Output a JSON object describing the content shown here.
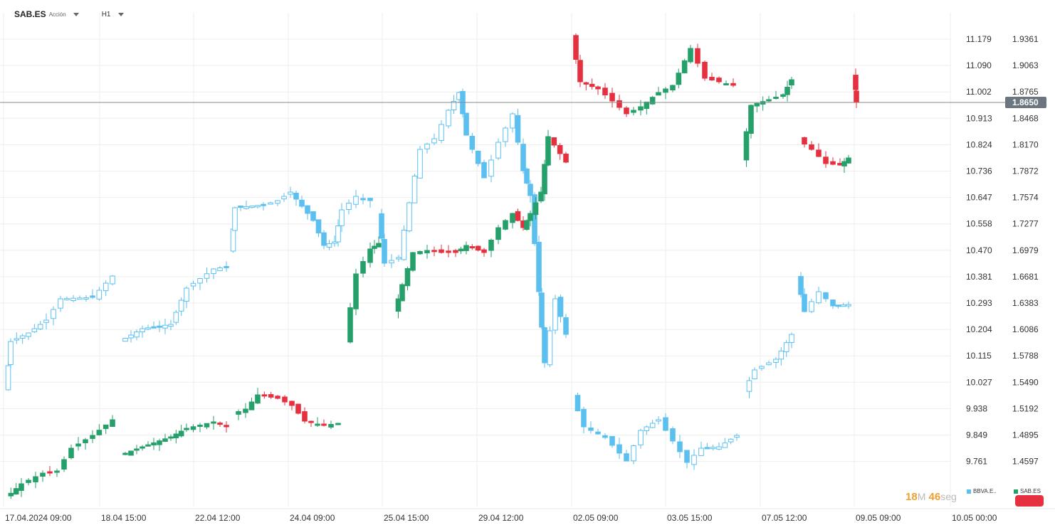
{
  "header": {
    "symbol": "SAB.ES",
    "instrument_type": "Acción",
    "timeframe": "H1"
  },
  "axes": {
    "left_price_ticks": [
      "11.179",
      "11.090",
      "11.002",
      "10.913",
      "10.824",
      "10.736",
      "10.647",
      "10.558",
      "10.470",
      "10.381",
      "10.293",
      "10.204",
      "10.115",
      "10.027",
      "9.938",
      "9.849",
      "9.761"
    ],
    "right_price_ticks": [
      "1.9361",
      "1.9063",
      "1.8765",
      "1.8468",
      "1.8170",
      "1.7872",
      "1.7574",
      "1.7277",
      "1.6979",
      "1.6681",
      "1.6383",
      "1.6086",
      "1.5788",
      "1.5490",
      "1.5192",
      "1.4895",
      "1.4597"
    ],
    "time_labels": [
      "17.04.2024  09:00",
      "18.04  15:00",
      "22.04  12:00",
      "24.04  09:00",
      "25.04  15:00",
      "29.04  12:00",
      "02.05  09:00",
      "03.05  15:00",
      "07.05  12:00",
      "09.05  09:00",
      "10.05  00:00"
    ],
    "current_price": "1.8650"
  },
  "timer": {
    "minutes": "18",
    "min_unit": "M",
    "seconds": "46",
    "sec_unit": "seg"
  },
  "legend": [
    {
      "label": "BBVA.E..",
      "color": "#5bc0f0"
    },
    {
      "label": "SAB.ES",
      "color": "#26a06a"
    }
  ],
  "colors": {
    "up": "#26a06a",
    "down": "#e5303f",
    "compare": "#5bc0f0",
    "grid": "#eeeeee",
    "price_line": "#888888",
    "price_badge": "#6b7680"
  }
}
